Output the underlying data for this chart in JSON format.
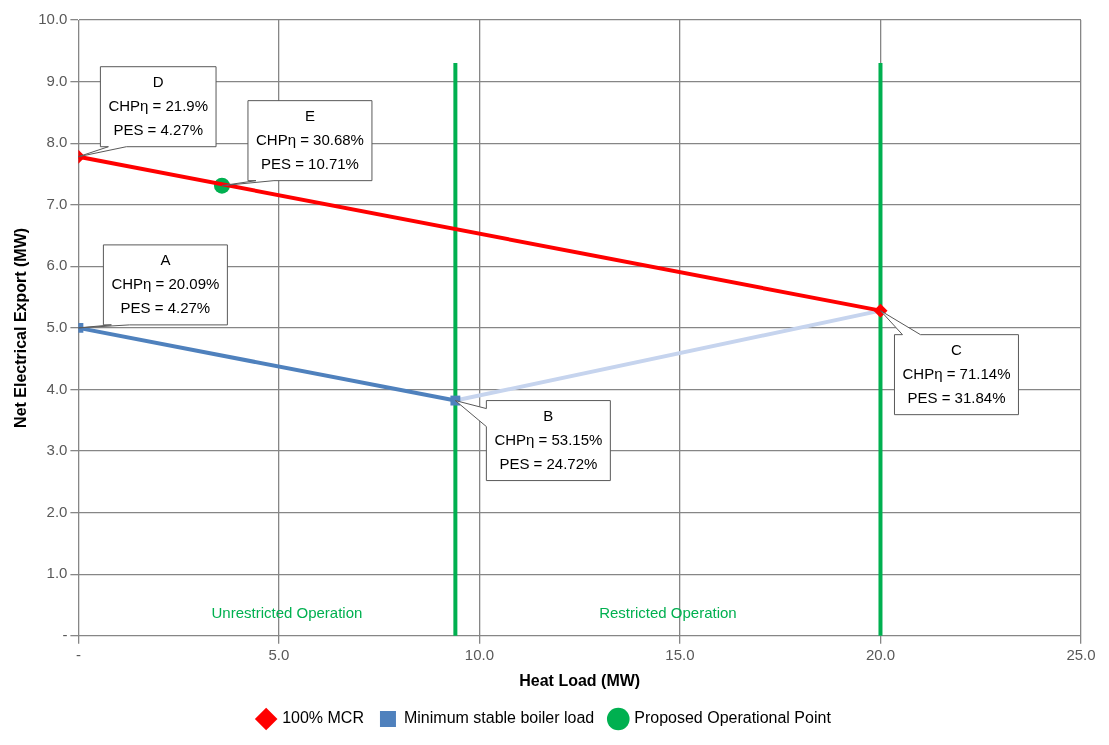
{
  "chart_data": {
    "type": "line",
    "xlabel": "Heat Load (MW)",
    "ylabel": "Net Electrical Export (MW)",
    "xlim": [
      0,
      25
    ],
    "xticks": [
      {
        "value": 0,
        "label": "-"
      },
      {
        "value": 5,
        "label": "5.0"
      },
      {
        "value": 10,
        "label": "10.0"
      },
      {
        "value": 15,
        "label": "15.0"
      },
      {
        "value": 20,
        "label": "20.0"
      },
      {
        "value": 25,
        "label": "25.0"
      }
    ],
    "ylim": [
      0,
      10
    ],
    "yticks": [
      {
        "value": 0,
        "label": "-"
      },
      {
        "value": 1,
        "label": "1.0"
      },
      {
        "value": 2,
        "label": "2.0"
      },
      {
        "value": 3,
        "label": "3.0"
      },
      {
        "value": 4,
        "label": "4.0"
      },
      {
        "value": 5,
        "label": "5.0"
      },
      {
        "value": 6,
        "label": "6.0"
      },
      {
        "value": 7,
        "label": "7.0"
      },
      {
        "value": 8,
        "label": "8.0"
      },
      {
        "value": 9,
        "label": "9.0"
      },
      {
        "value": 10,
        "label": "10.0"
      }
    ],
    "grid": true,
    "legend": "bottom",
    "series": [
      {
        "name": "100% MCR",
        "type": "line",
        "color": "#ff0000",
        "marker": "diamond",
        "x": [
          0,
          20
        ],
        "values": [
          7.78,
          5.28
        ]
      },
      {
        "name": "Minimum stable boiler load",
        "type": "line",
        "color": "#4f81bd",
        "marker": "square",
        "x": [
          0,
          9.4
        ],
        "values": [
          5.0,
          3.82
        ]
      },
      {
        "type": "line",
        "color": "#c6d4ee",
        "marker": "none",
        "x": [
          9.4,
          20
        ],
        "values": [
          3.82,
          5.28
        ]
      },
      {
        "name": "Proposed Operational Point",
        "type": "scatter",
        "color": "#00b050",
        "marker": "circle",
        "x": [
          3.58
        ],
        "values": [
          7.31
        ]
      }
    ],
    "ref_lines": [
      {
        "axis": "x",
        "value": 9.4,
        "color": "#00b050"
      },
      {
        "axis": "x",
        "value": 20,
        "color": "#00b050"
      }
    ],
    "annotations": [
      {
        "text": "D\nCHPη = 21.9%\nPES = 4.27%",
        "x": 0,
        "y": 7.78
      },
      {
        "text": "E\nCHPη = 30.68%\nPES = 10.71%",
        "x": 3.58,
        "y": 7.31
      },
      {
        "text": "A\nCHPη = 20.09%\nPES = 4.27%",
        "x": 0,
        "y": 5.0
      },
      {
        "text": "B\nCHPη = 53.15%\nPES = 24.72%",
        "x": 9.4,
        "y": 3.82
      },
      {
        "text": "C\nCHPη = 71.14%\nPES = 31.84%",
        "x": 20,
        "y": 5.28
      },
      "Unrestricted Operation",
      "Restricted Operation"
    ]
  }
}
